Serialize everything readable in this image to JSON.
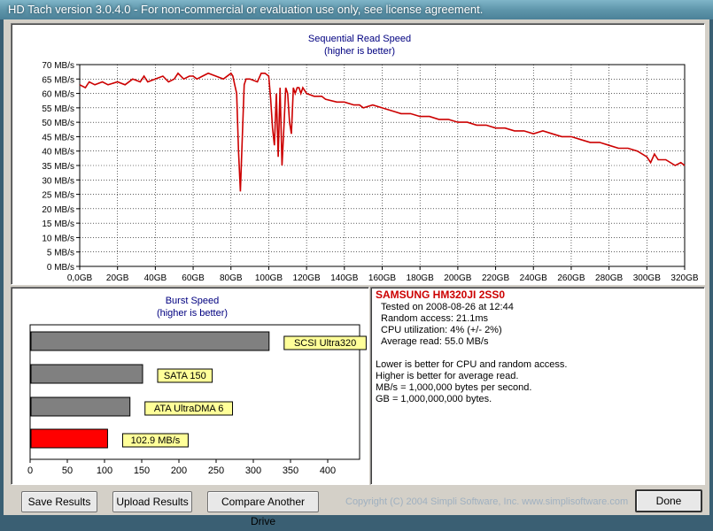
{
  "window": {
    "title": "HD Tach version 3.0.4.0  - For non-commercial or evaluation use only, see license agreement."
  },
  "seq": {
    "title": "Sequential Read Speed",
    "subtitle": "(higher is better)",
    "y_ticks": [
      "0 MB/s",
      "5 MB/s",
      "10 MB/s",
      "15 MB/s",
      "20 MB/s",
      "25 MB/s",
      "30 MB/s",
      "35 MB/s",
      "40 MB/s",
      "45 MB/s",
      "50 MB/s",
      "55 MB/s",
      "60 MB/s",
      "65 MB/s",
      "70 MB/s"
    ],
    "x_ticks": [
      "0,0GB",
      "20GB",
      "40GB",
      "60GB",
      "80GB",
      "100GB",
      "120GB",
      "140GB",
      "160GB",
      "180GB",
      "200GB",
      "220GB",
      "240GB",
      "260GB",
      "280GB",
      "300GB",
      "320GB"
    ]
  },
  "burst": {
    "title": "Burst Speed",
    "subtitle": "(higher is better)",
    "x_ticks": [
      "0",
      "50",
      "100",
      "150",
      "200",
      "250",
      "300",
      "350",
      "400"
    ]
  },
  "info": {
    "drive": "SAMSUNG HM320JI 2SS0",
    "tested": "Tested on 2008-08-26 at 12:44",
    "random": "Random access: 21.1ms",
    "cpu": "CPU utilization: 4% (+/- 2%)",
    "avg": "Average read: 55.0 MB/s",
    "note1": "Lower is better for CPU and random access.",
    "note2": "Higher is better for average read.",
    "note3": "MB/s = 1,000,000 bytes per second.",
    "note4": "GB = 1,000,000,000 bytes."
  },
  "buttons": {
    "save": "Save Results",
    "upload": "Upload Results",
    "compare": "Compare Another Drive",
    "done": "Done"
  },
  "copyright": "Copyright (C) 2004 Simpli Software, Inc. www.simplisoftware.com",
  "colors": {
    "series": "#cc0000",
    "burst_ref": "#808080",
    "burst_drive": "#ff0000",
    "label_bg": "#ffff99"
  },
  "chart_data": [
    {
      "type": "line",
      "title": "Sequential Read Speed",
      "subtitle": "(higher is better)",
      "ylim": [
        0,
        70
      ],
      "xlim": [
        0,
        320
      ],
      "x_unit": "GB",
      "y_unit": "MB/s",
      "grid": true,
      "series": [
        {
          "x": [
            0,
            3,
            5,
            8,
            12,
            15,
            20,
            24,
            28,
            32,
            34,
            36,
            40,
            44,
            47,
            50,
            52,
            55,
            58,
            60,
            62,
            65,
            68,
            72,
            76,
            80,
            81,
            82,
            83,
            84,
            85,
            86,
            87,
            88,
            90,
            94,
            96,
            98,
            100,
            101,
            102,
            103,
            104,
            105,
            106,
            107,
            108,
            109,
            110,
            111,
            112,
            113,
            114,
            115,
            116,
            117,
            118,
            119,
            120,
            124,
            128,
            130,
            136,
            140,
            145,
            148,
            150,
            155,
            160,
            165,
            170,
            175,
            180,
            185,
            190,
            195,
            200,
            205,
            210,
            215,
            220,
            225,
            230,
            235,
            240,
            245,
            250,
            255,
            260,
            265,
            270,
            275,
            280,
            285,
            290,
            295,
            300,
            302,
            304,
            306,
            310,
            315,
            318,
            320
          ],
          "y": [
            63,
            62,
            64,
            63,
            64,
            63,
            64,
            63,
            65,
            64,
            66,
            64,
            65,
            66,
            64,
            65,
            67,
            65,
            66,
            66,
            65,
            66,
            67,
            66,
            65,
            67,
            66,
            63,
            60,
            40,
            26,
            45,
            63,
            65,
            65,
            64,
            67,
            67,
            66,
            58,
            48,
            42,
            60,
            38,
            62,
            35,
            48,
            62,
            60,
            50,
            46,
            62,
            60,
            62,
            62,
            60,
            62,
            61,
            60,
            59,
            59,
            58,
            57,
            57,
            56,
            56,
            55,
            56,
            55,
            54,
            53,
            53,
            52,
            52,
            51,
            51,
            50,
            50,
            49,
            49,
            48,
            48,
            47,
            47,
            46,
            47,
            46,
            45,
            45,
            44,
            43,
            43,
            42,
            41,
            41,
            40,
            38,
            36,
            39,
            37,
            37,
            35,
            36,
            35
          ]
        }
      ]
    },
    {
      "type": "bar",
      "title": "Burst Speed",
      "subtitle": "(higher is better)",
      "xlim": [
        0,
        400
      ],
      "categories": [
        "SCSI Ultra320",
        "SATA 150",
        "ATA UltraDMA 6",
        "102.9 MB/s"
      ],
      "values": [
        320,
        150,
        133,
        102.9
      ]
    }
  ]
}
